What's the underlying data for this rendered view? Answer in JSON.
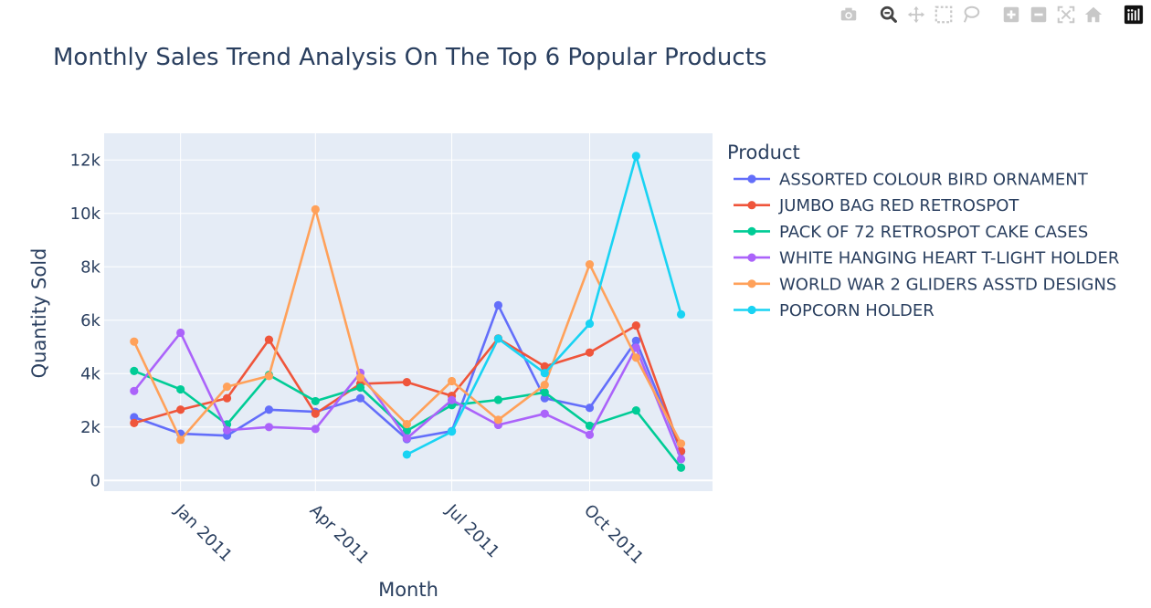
{
  "modebar": {
    "buttons": [
      {
        "name": "camera-icon",
        "group": 0
      },
      {
        "name": "zoom-icon",
        "group": 1,
        "active": true
      },
      {
        "name": "pan-icon",
        "group": 1
      },
      {
        "name": "box-select-icon",
        "group": 1
      },
      {
        "name": "lasso-select-icon",
        "group": 1
      },
      {
        "name": "zoom-in-icon",
        "group": 2
      },
      {
        "name": "zoom-out-icon",
        "group": 2
      },
      {
        "name": "autoscale-icon",
        "group": 2
      },
      {
        "name": "reset-axes-icon",
        "group": 2
      },
      {
        "name": "plotly-logo-icon",
        "group": 3
      }
    ]
  },
  "colors": {
    "plot_bg": "#e5ecf6",
    "grid": "#ffffff",
    "text": "#2a3f5f"
  },
  "chart_data": {
    "type": "line",
    "title": "Monthly Sales Trend Analysis On The Top 6 Popular Products",
    "xlabel": "Month",
    "ylabel": "Quantity Sold",
    "legend_title": "Product",
    "legend_position": "right",
    "grid": true,
    "xlim": [
      "2010-11-11",
      "2011-12-22"
    ],
    "ylim": [
      -400,
      13000
    ],
    "x_ticks": [
      {
        "date": "2011-01-01",
        "label": "Jan 2011"
      },
      {
        "date": "2011-04-01",
        "label": "Apr 2011"
      },
      {
        "date": "2011-07-01",
        "label": "Jul 2011"
      },
      {
        "date": "2011-10-01",
        "label": "Oct 2011"
      }
    ],
    "y_ticks": [
      {
        "value": 0,
        "label": "0"
      },
      {
        "value": 2000,
        "label": "2k"
      },
      {
        "value": 4000,
        "label": "4k"
      },
      {
        "value": 6000,
        "label": "6k"
      },
      {
        "value": 8000,
        "label": "8k"
      },
      {
        "value": 10000,
        "label": "10k"
      },
      {
        "value": 12000,
        "label": "12k"
      }
    ],
    "x": [
      "2010-12-01",
      "2011-01-01",
      "2011-02-01",
      "2011-03-01",
      "2011-04-01",
      "2011-05-01",
      "2011-06-01",
      "2011-07-01",
      "2011-08-01",
      "2011-09-01",
      "2011-10-01",
      "2011-11-01",
      "2011-12-01"
    ],
    "series": [
      {
        "name": "ASSORTED COLOUR BIRD ORNAMENT",
        "color": "#636efa",
        "values": [
          2370,
          1750,
          1680,
          2650,
          2570,
          3080,
          1550,
          1850,
          6560,
          3080,
          2720,
          5230,
          1080
        ]
      },
      {
        "name": "JUMBO BAG RED RETROSPOT",
        "color": "#EF553B",
        "values": [
          2150,
          2650,
          3080,
          5270,
          2500,
          3620,
          3680,
          3170,
          5320,
          4270,
          4790,
          5800,
          1100
        ]
      },
      {
        "name": "PACK OF 72 RETROSPOT CAKE CASES",
        "color": "#00cc96",
        "values": [
          4100,
          3410,
          2100,
          3950,
          2970,
          3480,
          1860,
          2820,
          3020,
          3300,
          2050,
          2620,
          480
        ]
      },
      {
        "name": "WHITE HANGING HEART T-LIGHT HOLDER",
        "color": "#ab63fa",
        "values": [
          3350,
          5530,
          1880,
          2000,
          1930,
          4030,
          1580,
          3010,
          2080,
          2500,
          1710,
          4970,
          800
        ]
      },
      {
        "name": "WORLD WAR 2 GLIDERS ASSTD DESIGNS",
        "color": "#FFA15A",
        "values": [
          5200,
          1520,
          3510,
          3910,
          10150,
          3850,
          2110,
          3720,
          2270,
          3580,
          8090,
          4600,
          1380
        ]
      },
      {
        "name": "POPCORN HOLDER",
        "color": "#19d3f3",
        "values": [
          null,
          null,
          null,
          null,
          null,
          null,
          970,
          1830,
          5310,
          4020,
          5870,
          12150,
          6220
        ]
      }
    ]
  }
}
